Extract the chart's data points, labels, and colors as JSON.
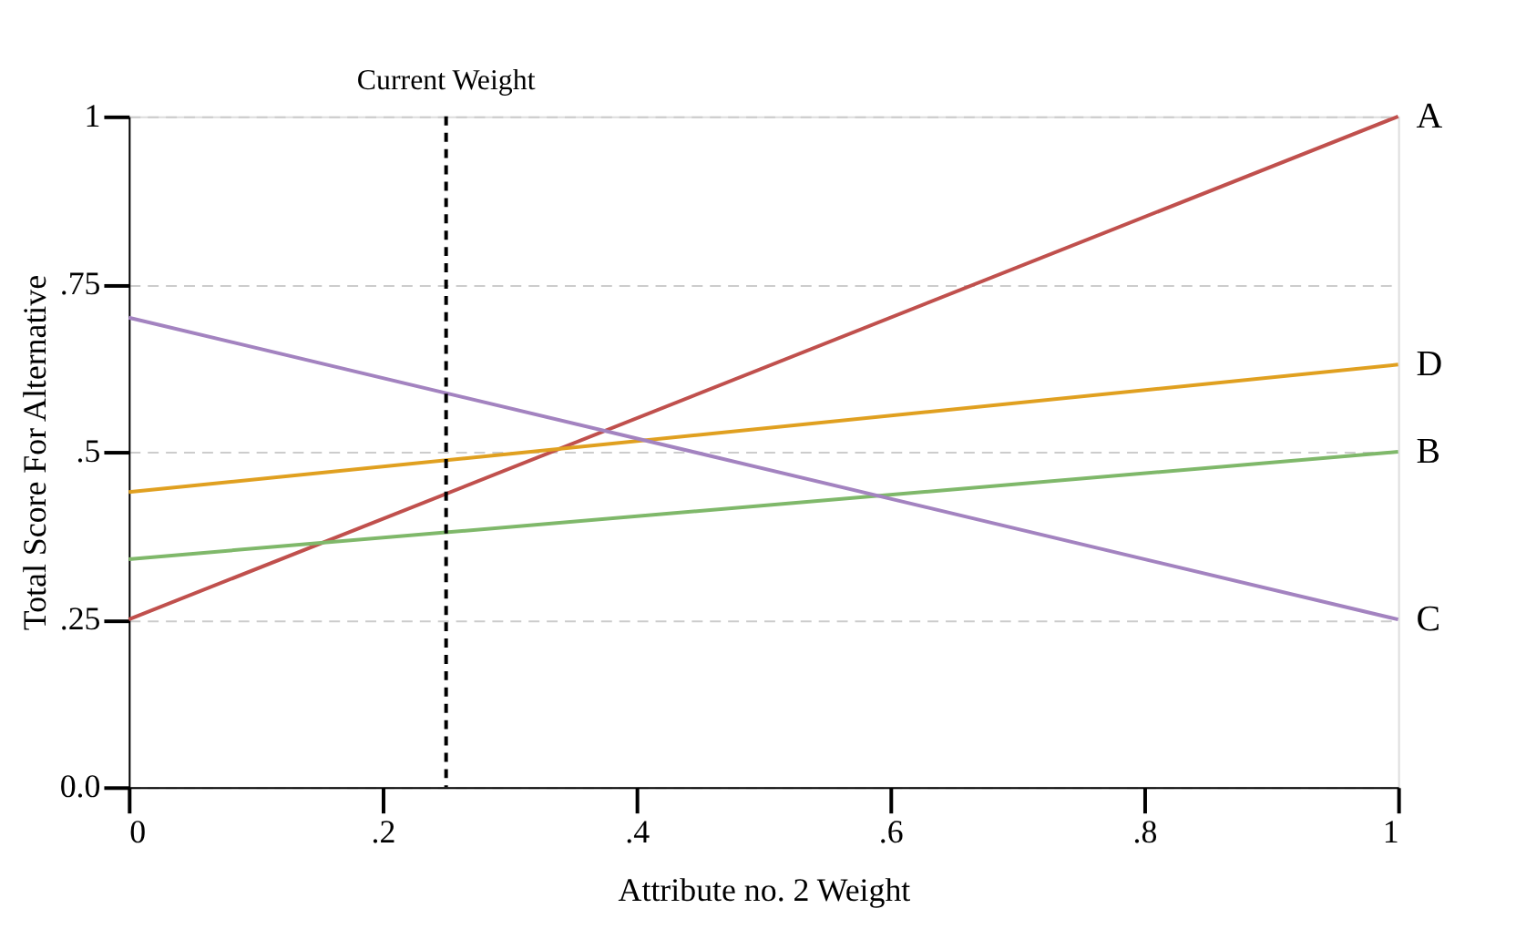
{
  "chart_data": {
    "type": "line",
    "xlabel": "Attribute no. 2 Weight",
    "ylabel": "Total Score For Alternative",
    "x": [
      0,
      1
    ],
    "series": [
      {
        "name": "A",
        "color": "#c0504d",
        "values": [
          0.25,
          1.0
        ]
      },
      {
        "name": "D",
        "color": "#e0a020",
        "values": [
          0.44,
          0.63
        ]
      },
      {
        "name": "B",
        "color": "#7fb86a",
        "values": [
          0.34,
          0.5
        ]
      },
      {
        "name": "C",
        "color": "#a383c0",
        "values": [
          0.7,
          0.25
        ]
      }
    ],
    "xlim": [
      0,
      1
    ],
    "ylim": [
      0,
      1
    ],
    "xticks": [
      0,
      {
        "value": 0.2,
        "label": ".2"
      },
      {
        "value": 0.4,
        "label": ".4"
      },
      {
        "value": 0.6,
        "label": ".6"
      },
      {
        "value": 0.8,
        "label": ".8"
      },
      1
    ],
    "yticks": [
      {
        "value": 0,
        "label": "0.0"
      },
      {
        "value": 0.25,
        "label": ".25"
      },
      {
        "value": 0.5,
        "label": ".5"
      },
      {
        "value": 0.75,
        "label": ".75"
      },
      1
    ],
    "ref_lines": [
      {
        "axis": "x",
        "value": 0.25,
        "label": "Current Weight",
        "color": "#000000",
        "line_style": "dashed"
      }
    ],
    "grid": "y",
    "legend": false,
    "marker": "none",
    "line_style": "solid"
  }
}
